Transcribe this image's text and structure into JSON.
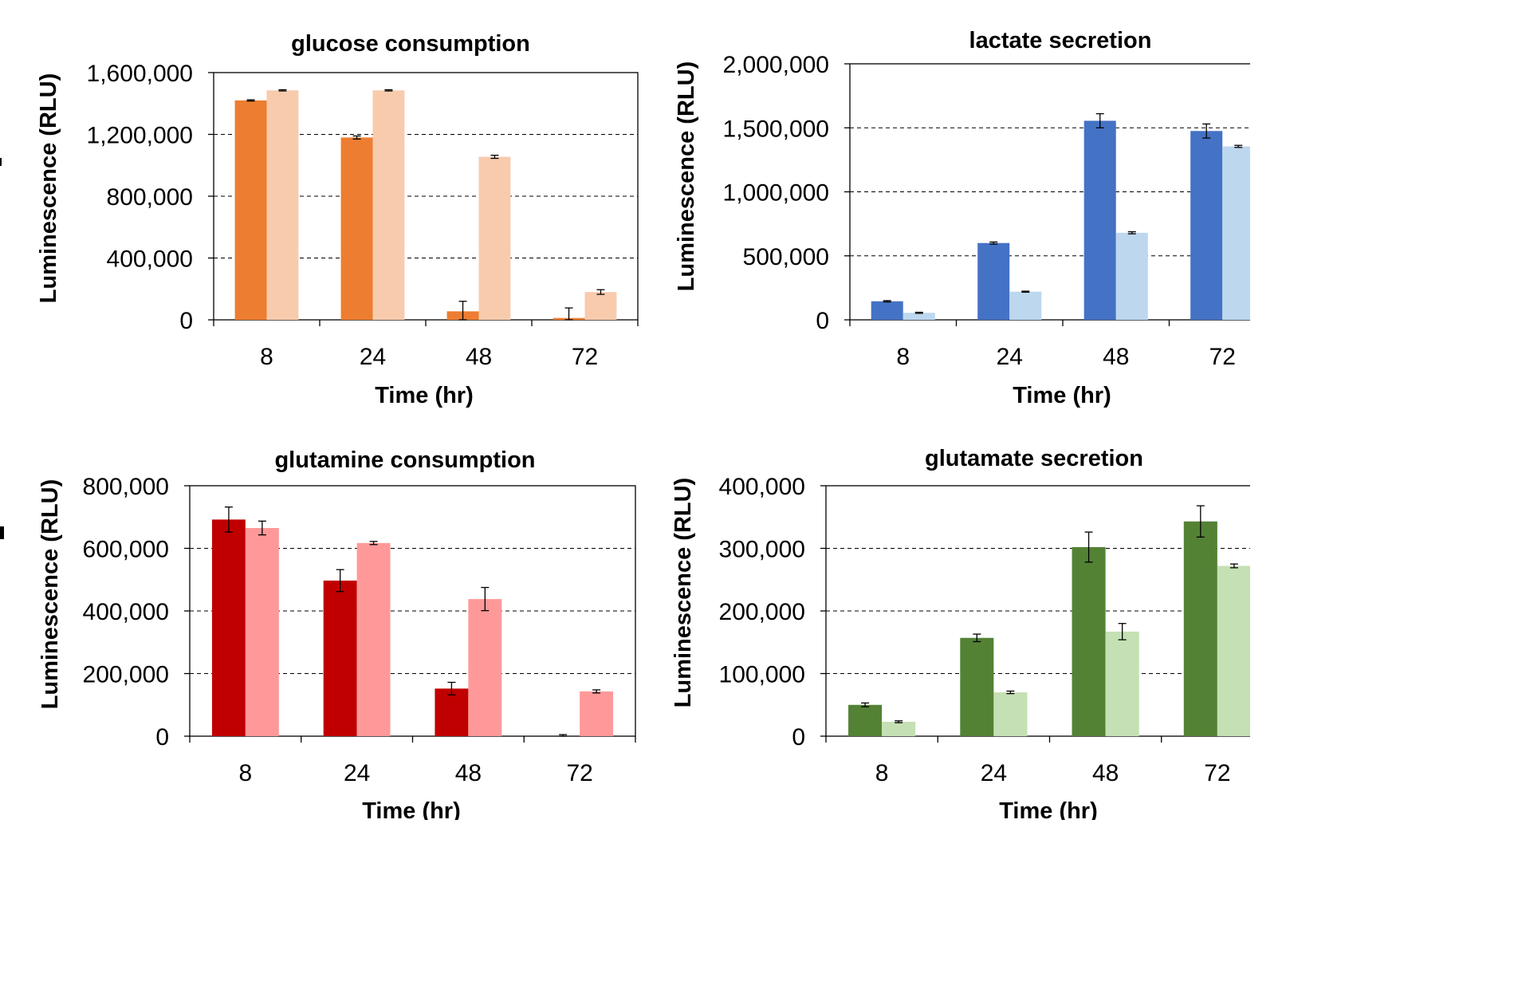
{
  "chart_data": [
    {
      "type": "bar",
      "title": "glucose consumption",
      "xlabel": "Time (hr)",
      "ylabel": "Luminescence (RLU)",
      "ylim": [
        0,
        1600000
      ],
      "yticks": [
        0,
        400000,
        800000,
        1200000,
        1600000
      ],
      "ytick_labels": [
        "0",
        "400,000",
        "800,000",
        "1,200,000",
        "1,600,000"
      ],
      "categories": [
        "8",
        "24",
        "48",
        "72"
      ],
      "grid": "dashed horizontal",
      "series": [
        {
          "color": "#ED7D31",
          "values": [
            1420000,
            1180000,
            55000,
            12000
          ],
          "errors": [
            4000,
            10000,
            65000,
            65000
          ]
        },
        {
          "color": "#F8CBAD",
          "values": [
            1485000,
            1485000,
            1055000,
            180000
          ],
          "errors": [
            4000,
            4000,
            10000,
            15000
          ]
        }
      ]
    },
    {
      "type": "bar",
      "title": "lactate secretion",
      "xlabel": "Time (hr)",
      "ylabel": "Luminescence (RLU)",
      "ylim": [
        0,
        2000000
      ],
      "yticks": [
        0,
        500000,
        1000000,
        1500000,
        2000000
      ],
      "ytick_labels": [
        "0",
        "500,000",
        "1,000,000",
        "1,500,000",
        "2,000,000"
      ],
      "categories": [
        "8",
        "24",
        "48",
        "72"
      ],
      "grid": "dashed horizontal",
      "series": [
        {
          "color": "#4472C4",
          "values": [
            145000,
            600000,
            1555000,
            1475000
          ],
          "errors": [
            5000,
            8000,
            55000,
            55000
          ]
        },
        {
          "color": "#BDD7EE",
          "values": [
            55000,
            220000,
            680000,
            1355000
          ],
          "errors": [
            4000,
            4000,
            8000,
            8000
          ]
        }
      ]
    },
    {
      "type": "bar",
      "title": "glutamine consumption",
      "xlabel": "Time (hr)",
      "ylabel": "Luminescence (RLU)",
      "ylim": [
        0,
        800000
      ],
      "yticks": [
        0,
        200000,
        400000,
        600000,
        800000
      ],
      "ytick_labels": [
        "0",
        "200,000",
        "400,000",
        "600,000",
        "800,000"
      ],
      "categories": [
        "8",
        "24",
        "48",
        "72"
      ],
      "grid": "dashed horizontal",
      "series": [
        {
          "color": "#C00000",
          "values": [
            692000,
            497000,
            152000,
            0
          ],
          "errors": [
            40000,
            35000,
            20000,
            5000
          ]
        },
        {
          "color": "#FF9999",
          "values": [
            665000,
            617000,
            438000,
            143000
          ],
          "errors": [
            22000,
            5000,
            37000,
            5000
          ]
        }
      ]
    },
    {
      "type": "bar",
      "title": "glutamate secretion",
      "xlabel": "Time (hr)",
      "ylabel": "Luminescence (RLU)",
      "ylim": [
        0,
        400000
      ],
      "yticks": [
        0,
        100000,
        200000,
        300000,
        400000
      ],
      "ytick_labels": [
        "0",
        "100,000",
        "200,000",
        "300,000",
        "400,000"
      ],
      "categories": [
        "8",
        "24",
        "48",
        "72"
      ],
      "grid": "dashed horizontal",
      "series": [
        {
          "color": "#548235",
          "values": [
            50000,
            157000,
            302000,
            343000
          ],
          "errors": [
            3000,
            6000,
            24000,
            25000
          ]
        },
        {
          "color": "#C5E0B4",
          "values": [
            23000,
            70000,
            167000,
            272000
          ],
          "errors": [
            1500,
            2000,
            13000,
            3000
          ]
        }
      ]
    }
  ]
}
